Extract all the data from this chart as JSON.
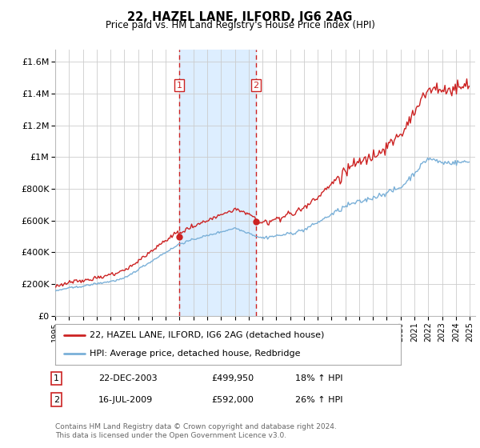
{
  "title": "22, HAZEL LANE, ILFORD, IG6 2AG",
  "subtitle": "Price paid vs. HM Land Registry's House Price Index (HPI)",
  "ylabel_ticks": [
    "£0",
    "£200K",
    "£400K",
    "£600K",
    "£800K",
    "£1M",
    "£1.2M",
    "£1.4M",
    "£1.6M"
  ],
  "ytick_values": [
    0,
    200000,
    400000,
    600000,
    800000,
    1000000,
    1200000,
    1400000,
    1600000
  ],
  "ylim": [
    0,
    1680000
  ],
  "xlim_start": 1995.0,
  "xlim_end": 2025.4,
  "sale1_x": 2003.97,
  "sale1_y": 499950,
  "sale2_x": 2009.54,
  "sale2_y": 592000,
  "shade_color": "#ddeeff",
  "vline_color": "#cc2222",
  "hpi_line_color": "#7ab0d8",
  "price_line_color": "#cc2222",
  "legend_label1": "22, HAZEL LANE, ILFORD, IG6 2AG (detached house)",
  "legend_label2": "HPI: Average price, detached house, Redbridge",
  "table_row1": [
    "1",
    "22-DEC-2003",
    "£499,950",
    "18% ↑ HPI"
  ],
  "table_row2": [
    "2",
    "16-JUL-2009",
    "£592,000",
    "26% ↑ HPI"
  ],
  "footnote": "Contains HM Land Registry data © Crown copyright and database right 2024.\nThis data is licensed under the Open Government Licence v3.0.",
  "background_color": "#ffffff",
  "grid_color": "#cccccc"
}
